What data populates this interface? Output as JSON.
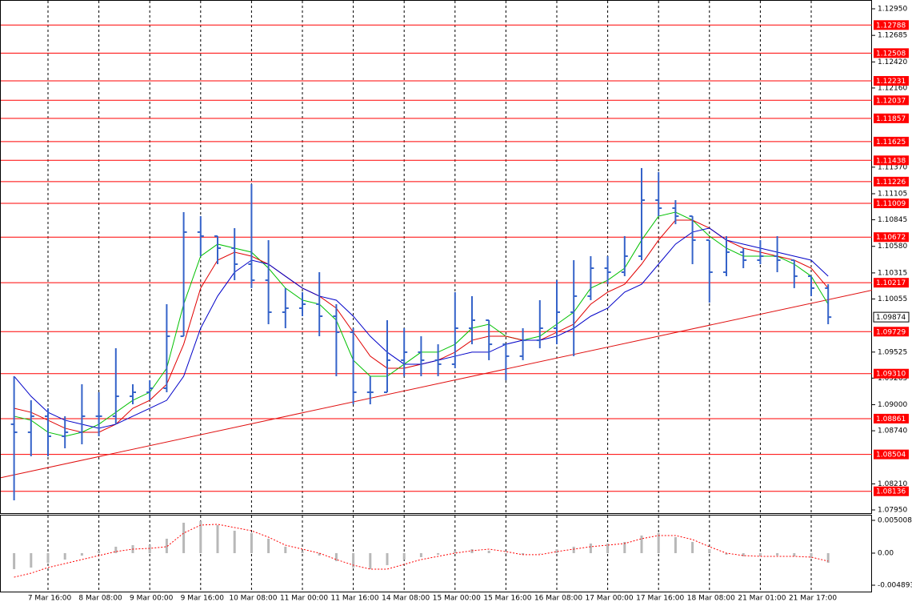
{
  "chart_data": {
    "type": "ohlc",
    "categories": [
      null,
      null,
      "7 Mar 16:00",
      null,
      null,
      "8 Mar 08:00",
      null,
      null,
      "9 Mar 00:00",
      null,
      null,
      "9 Mar 16:00",
      null,
      null,
      "10 Mar 08:00",
      null,
      null,
      "11 Mar 00:00",
      null,
      null,
      "11 Mar 16:00",
      null,
      null,
      "14 Mar 08:00",
      null,
      null,
      "15 Mar 00:00",
      null,
      null,
      "15 Mar 16:00",
      null,
      null,
      "16 Mar 08:00",
      null,
      null,
      "17 Mar 00:00",
      null,
      null,
      "17 Mar 16:00",
      null,
      null,
      "18 Mar 08:00",
      null,
      null,
      "21 Mar 01:00",
      null,
      null,
      "21 Mar 17:00",
      null
    ],
    "open": [
      1.08805,
      1.08725,
      1.08885,
      1.08685,
      1.08725,
      1.08885,
      1.08885,
      1.09084,
      1.09124,
      1.09164,
      1.09683,
      1.10722,
      1.10682,
      1.10562,
      1.10402,
      1.10242,
      1.09923,
      1.09963,
      1.10003,
      1.09883,
      1.09723,
      1.09124,
      1.09124,
      1.09444,
      1.09524,
      1.09444,
      1.09404,
      1.09763,
      1.09843,
      1.09603,
      1.09484,
      1.09643,
      1.09763,
      1.09923,
      1.10083,
      1.10362,
      1.10322,
      1.10482,
      1.11041,
      1.10961,
      1.10881,
      1.10642,
      1.10322,
      1.10522,
      1.10442,
      1.10482,
      1.10442,
      1.10282,
      1.10163
    ],
    "high": [
      1.09284,
      1.09044,
      1.08964,
      1.08885,
      1.09204,
      1.09124,
      1.09563,
      1.09204,
      1.09244,
      1.10003,
      1.10921,
      1.10881,
      1.10682,
      1.10762,
      1.11201,
      1.10642,
      1.10163,
      1.10123,
      1.10322,
      1.10003,
      1.09763,
      1.09284,
      1.09843,
      1.09763,
      1.09683,
      1.09603,
      1.10123,
      1.10083,
      1.09843,
      1.09603,
      1.09763,
      1.10043,
      1.10242,
      1.10442,
      1.10482,
      1.10482,
      1.10682,
      1.11361,
      1.11321,
      1.11041,
      1.10881,
      1.10642,
      1.10682,
      1.10562,
      1.10642,
      1.10682,
      1.10442,
      1.10282,
      1.10202
    ],
    "low": [
      1.08046,
      1.08485,
      1.08485,
      1.08565,
      1.08605,
      1.08685,
      1.08805,
      1.09004,
      1.09044,
      1.09124,
      1.09683,
      1.10482,
      1.10402,
      1.10242,
      1.10163,
      1.09803,
      1.09763,
      1.09883,
      1.09683,
      1.09284,
      1.09004,
      1.09004,
      1.09124,
      1.09284,
      1.09284,
      1.09284,
      1.09364,
      1.09603,
      1.09444,
      1.09244,
      1.09444,
      1.09563,
      1.09603,
      1.09484,
      1.10043,
      1.10202,
      1.10282,
      1.10442,
      1.10881,
      1.10801,
      1.10402,
      1.10019,
      1.10282,
      1.10362,
      1.10402,
      1.10322,
      1.10163,
      1.10083,
      1.09803
    ],
    "close": [
      1.08725,
      1.08885,
      1.08685,
      1.08725,
      1.08885,
      1.08885,
      1.09084,
      1.09124,
      1.09164,
      1.09683,
      1.10722,
      1.10682,
      1.10562,
      1.10402,
      1.10242,
      1.09923,
      1.09963,
      1.10003,
      1.09883,
      1.09723,
      1.09124,
      1.09124,
      1.09444,
      1.09524,
      1.09444,
      1.09404,
      1.09763,
      1.09843,
      1.09603,
      1.09484,
      1.09643,
      1.09763,
      1.09923,
      1.10083,
      1.10362,
      1.10322,
      1.10482,
      1.11041,
      1.10961,
      1.10881,
      1.10642,
      1.10322,
      1.10522,
      1.10442,
      1.10482,
      1.10442,
      1.10282,
      1.10163,
      1.09874
    ],
    "color": "#3563c9",
    "ylim": [
      1.0795,
      1.1295
    ],
    "yticks": [
      {
        "value": 1.1295,
        "label": "1.12950"
      },
      1.12685,
      {
        "value": 1.1242,
        "label": "1.12420"
      },
      {
        "value": 1.1216,
        "label": "1.12160"
      },
      {
        "value": 1.1137,
        "label": "1.11370"
      },
      1.11105,
      1.10845,
      {
        "value": 1.1058,
        "label": "1.10580"
      },
      1.10315,
      1.10055,
      1.09525,
      1.09265,
      {
        "value": 1.09,
        "label": "1.09000"
      },
      {
        "value": 1.0874,
        "label": "1.08740"
      },
      {
        "value": 1.0821,
        "label": "1.08210"
      },
      {
        "value": 1.0795,
        "label": "1.07950"
      }
    ],
    "grid": true,
    "levels": [
      1.12788,
      1.12508,
      1.12231,
      1.12037,
      1.11857,
      1.11625,
      1.11438,
      1.11226,
      1.11009,
      1.10672,
      1.10217,
      1.09729,
      {
        "value": 1.0931,
        "label": "1.09310"
      },
      1.08861,
      1.08504,
      1.08136
    ],
    "level_color": "#ff0000",
    "current_price": 1.09874,
    "trendline": [
      1.083,
      1.10048
    ],
    "trendline_color": "#e01010",
    "moving_averages": [
      {
        "color": "#00c000",
        "values": [
          1.08885,
          1.08845,
          1.08725,
          1.08685,
          1.08725,
          1.08805,
          1.08924,
          1.09044,
          1.09124,
          1.09364,
          1.10003,
          1.10482,
          1.10602,
          1.10562,
          1.10522,
          1.10362,
          1.10163,
          1.10043,
          1.10003,
          1.09843,
          1.09444,
          1.09284,
          1.09284,
          1.09404,
          1.09524,
          1.09524,
          1.09603,
          1.09763,
          1.09803,
          1.09683,
          1.09643,
          1.09683,
          1.09803,
          1.09923,
          1.10163,
          1.10242,
          1.10362,
          1.10642,
          1.10881,
          1.10921,
          1.10841,
          1.10682,
          1.10562,
          1.10482,
          1.10482,
          1.10482,
          1.10402,
          1.10282,
          1.10003
        ]
      },
      {
        "color": "#e00000",
        "values": [
          1.08964,
          1.08924,
          1.08845,
          1.08765,
          1.08725,
          1.08725,
          1.08805,
          1.08964,
          1.09044,
          1.09204,
          1.09603,
          1.10163,
          1.10442,
          1.10522,
          1.10482,
          1.10402,
          1.10282,
          1.10163,
          1.10083,
          1.09963,
          1.09723,
          1.09484,
          1.09364,
          1.09364,
          1.09404,
          1.09444,
          1.09524,
          1.09643,
          1.09683,
          1.09683,
          1.09643,
          1.09643,
          1.09723,
          1.09803,
          1.10003,
          1.10123,
          1.10202,
          1.10402,
          1.10642,
          1.10841,
          1.10841,
          1.10762,
          1.10642,
          1.10562,
          1.10522,
          1.10482,
          1.10442,
          1.10362,
          1.10163
        ]
      },
      {
        "color": "#0000c8",
        "values": [
          1.09284,
          1.09084,
          1.08924,
          1.08845,
          1.08805,
          1.08765,
          1.08805,
          1.08885,
          1.08964,
          1.09044,
          1.09284,
          1.09763,
          1.10083,
          1.10322,
          1.10442,
          1.10402,
          1.10282,
          1.10163,
          1.10083,
          1.10043,
          1.09883,
          1.09683,
          1.09524,
          1.09404,
          1.09404,
          1.09444,
          1.09484,
          1.09524,
          1.09524,
          1.09603,
          1.09643,
          1.09643,
          1.09683,
          1.09763,
          1.09883,
          1.09963,
          1.10123,
          1.10202,
          1.10402,
          1.10602,
          1.10722,
          1.10762,
          1.10642,
          1.10602,
          1.10562,
          1.10522,
          1.10482,
          1.10442,
          1.10282
        ]
      }
    ],
    "macd": {
      "ylim": [
        -0.00599,
        0.00586
      ],
      "yticks": [
        0.005008,
        {
          "value": 0,
          "label": "0.00"
        },
        -0.004893
      ],
      "histogram": [
        -0.00244,
        -0.0022,
        -0.00147,
        -0.00098,
        -0.00037,
        0.00037,
        0.00098,
        0.00122,
        0.00122,
        0.0022,
        0.00464,
        0.00489,
        0.00428,
        0.00342,
        0.00306,
        0.0022,
        0.00098,
        0.00024,
        -0.00037,
        -0.00122,
        -0.0022,
        -0.00244,
        -0.00183,
        -0.00098,
        -0.00061,
        -0.00024,
        0.00037,
        0.00061,
        0.00037,
        -0.00012,
        -0.00024,
        0,
        0.00061,
        0.00098,
        0.00147,
        0.00147,
        0.00171,
        0.00269,
        0.00306,
        0.00244,
        0.00171,
        0.00061,
        -0.00024,
        -0.00049,
        -0.00049,
        -0.00037,
        -0.00049,
        -0.00073,
        -0.00147
      ],
      "signal": [
        -0.00367,
        -0.00306,
        -0.0022,
        -0.00159,
        -0.00098,
        -0.00037,
        0.00024,
        0.00061,
        0.00073,
        0.00098,
        0.00306,
        0.00428,
        0.0044,
        0.00391,
        0.00342,
        0.00244,
        0.00122,
        0.00061,
        0,
        -0.00098,
        -0.00183,
        -0.00244,
        -0.00244,
        -0.00171,
        -0.00098,
        -0.00049,
        0,
        0.00037,
        0.00061,
        0.00024,
        -0.00024,
        -0.00024,
        0.00024,
        0.00061,
        0.00098,
        0.00122,
        0.00147,
        0.0022,
        0.00269,
        0.00269,
        0.00208,
        0.00098,
        0,
        -0.00037,
        -0.00049,
        -0.00049,
        -0.00049,
        -0.00061,
        -0.00122
      ],
      "histogram_color": "#b8b8b8",
      "signal_color": "#ff0000"
    }
  }
}
